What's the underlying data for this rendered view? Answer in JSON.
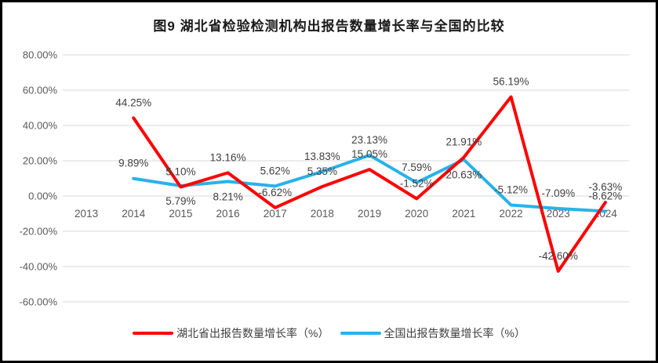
{
  "chart_data": {
    "type": "line",
    "title": "图9 湖北省检验检测机构出报告数量增长率与全国的比较",
    "categories": [
      "2013",
      "2014",
      "2015",
      "2016",
      "2017",
      "2018",
      "2019",
      "2020",
      "2021",
      "2022",
      "2023",
      "2024"
    ],
    "series": [
      {
        "name": "湖北省出报告数量增长率（%）",
        "color": "#FF0000",
        "values": [
          null,
          44.25,
          5.1,
          13.16,
          -6.62,
          5.35,
          15.05,
          -1.52,
          21.91,
          56.19,
          -42.6,
          -3.63
        ],
        "data_labels": [
          "",
          "44.25%",
          "5.10%",
          "13.16%",
          "-6.62%",
          "5.35%",
          "15.05%",
          "-1.52%",
          "21.91%",
          "56.19%",
          "-42.60%",
          "-3.63%"
        ],
        "label_positions": [
          null,
          "above",
          "above",
          "above",
          "above",
          "above",
          "above",
          "above",
          "above",
          "above",
          "above",
          "above"
        ]
      },
      {
        "name": "全国出报告数量增长率（%）",
        "color": "#29B2E8",
        "values": [
          null,
          9.89,
          5.79,
          8.21,
          5.62,
          13.83,
          23.13,
          7.59,
          20.63,
          -5.12,
          -7.09,
          -8.62
        ],
        "data_labels": [
          "",
          "9.89%",
          "5.79%",
          "8.21%",
          "5.62%",
          "13.83%",
          "23.13%",
          "7.59%",
          "20.63%",
          "-5.12%",
          "-7.09%",
          "-8.62%"
        ],
        "label_positions": [
          null,
          "above",
          "below",
          "below",
          "above",
          "above",
          "above",
          "above",
          "below",
          "above",
          "above",
          "above"
        ]
      }
    ],
    "y_axis": {
      "tick_labels": [
        "80.00%",
        "60.00%",
        "40.00%",
        "20.00%",
        "0.00%",
        "-20.00%",
        "-40.00%",
        "-60.00%"
      ],
      "tick_values": [
        80,
        60,
        40,
        20,
        0,
        -20,
        -40,
        -60
      ],
      "min": -60,
      "max": 80
    },
    "grid": true,
    "legend_position": "bottom",
    "colors": {
      "grid": "#D9D9D9",
      "axis_text": "#595959",
      "label_text": "#404040"
    }
  }
}
